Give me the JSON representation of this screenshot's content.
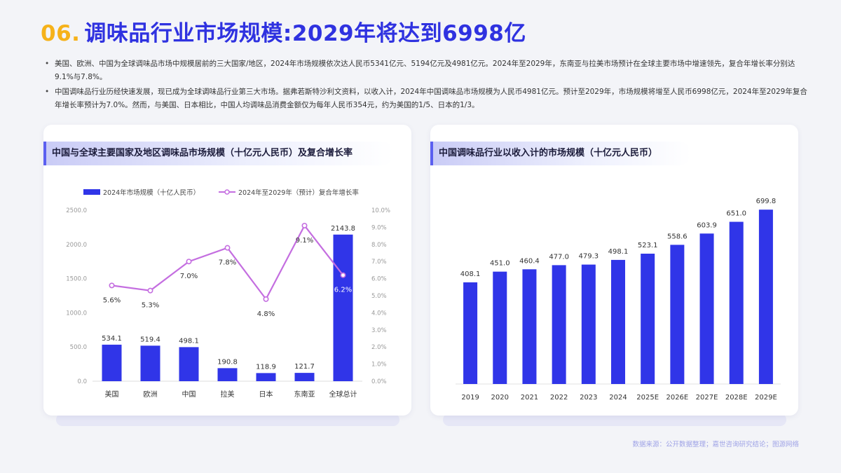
{
  "header": {
    "number": "06.",
    "title": "调味品行业市场规模:2029年将达到6998亿"
  },
  "bullets": [
    "美国、欧洲、中国为全球调味品市场中规模居前的三大国家/地区，2024年市场规模依次达人民币5341亿元、5194亿元及4981亿元。2024年至2029年，东南亚与拉美市场预计在全球主要市场中增速领先，复合年增长率分别达9.1%与7.8%。",
    "中国调味品行业历经快速发展，现已成为全球调味品行业第三大市场。据弗若斯特沙利文资料，以收入计，2024年中国调味品市场规模为人民币4981亿元。预计至2029年，市场规模将增至人民币6998亿元，2024年至2029年复合年增长率预计为7.0%。然而，与美国、日本相比，中国人均调味品消费金额仅为每年人民币354元，约为美国的1/5、日本的1/3。"
  ],
  "left_card": {
    "title": "中国与全球主要国家及地区调味品市场规模（十亿元人民币）及复合增长率"
  },
  "right_card": {
    "title": "中国调味品行业以收入计的市场规模（十亿元人民币）"
  },
  "source": "数据来源：公开数据整理；嘉世咨询研究结论；图源网络",
  "colors": {
    "bar": "#3035e8",
    "line": "#c46ee0",
    "title": "#2f32e0",
    "accent": "#f6b21a"
  },
  "chart_data": [
    {
      "type": "bar",
      "title": "中国与全球主要国家及地区调味品市场规模（十亿元人民币）及复合增长率",
      "categories": [
        "美国",
        "欧洲",
        "中国",
        "拉美",
        "日本",
        "东南亚",
        "全球总计"
      ],
      "series": [
        {
          "name": "2024年市场规模（十亿人民币）",
          "type": "bar",
          "axis": "left",
          "values": [
            534.1,
            519.4,
            498.1,
            190.8,
            118.9,
            121.7,
            2143.8
          ],
          "labels": [
            "534.1",
            "519.4",
            "498.1",
            "190.8",
            "118.9",
            "121.7",
            "2143.8"
          ]
        },
        {
          "name": "2024年至2029年（预计）复合年增长率",
          "type": "line",
          "axis": "right",
          "values": [
            5.6,
            5.3,
            7.0,
            7.8,
            4.8,
            9.1,
            6.2
          ],
          "labels": [
            "5.6%",
            "5.3%",
            "7.0%",
            "7.8%",
            "4.8%",
            "9.1%",
            "6.2%"
          ]
        }
      ],
      "y_left": {
        "range": [
          0,
          2500
        ],
        "ticks": [
          "0.0",
          "500.0",
          "1000.0",
          "1500.0",
          "2000.0",
          "2500.0"
        ]
      },
      "y_right": {
        "range": [
          0,
          10
        ],
        "ticks": [
          "0.0%",
          "1.0%",
          "2.0%",
          "3.0%",
          "4.0%",
          "5.0%",
          "6.0%",
          "7.0%",
          "8.0%",
          "9.0%",
          "10.0%"
        ]
      },
      "legend": "top",
      "grid": false
    },
    {
      "type": "bar",
      "title": "中国调味品行业以收入计的市场规模（十亿元人民币）",
      "categories": [
        "2019",
        "2020",
        "2021",
        "2022",
        "2023",
        "2024",
        "2025E",
        "2026E",
        "2027E",
        "2028E",
        "2029E"
      ],
      "values": [
        408.1,
        451.0,
        460.4,
        477.0,
        479.3,
        498.1,
        523.1,
        558.6,
        603.9,
        651.0,
        699.8
      ],
      "labels": [
        "408.1",
        "451.0",
        "460.4",
        "477.0",
        "479.3",
        "498.1",
        "523.1",
        "558.6",
        "603.9",
        "651.0",
        "699.8"
      ],
      "ylim": [
        0,
        720
      ],
      "grid": false
    }
  ]
}
